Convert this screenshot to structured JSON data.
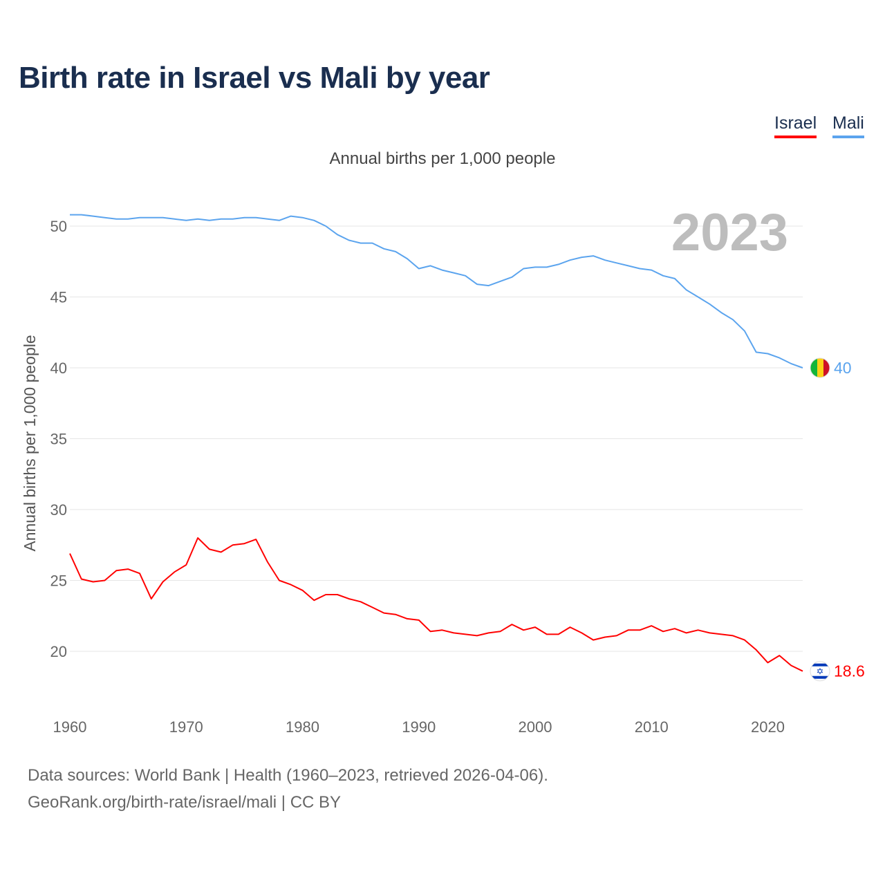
{
  "title": "Birth rate in Israel vs Mali by year",
  "legend": [
    {
      "label": "Israel",
      "color": "#ff0000"
    },
    {
      "label": "Mali",
      "color": "#5ba4ee"
    }
  ],
  "footer": {
    "line1": "Data sources: World Bank | Health (1960–2023, retrieved 2026-04-06).",
    "line2": "GeoRank.org/birth-rate/israel/mali | CC BY"
  },
  "chart_data": {
    "type": "line",
    "title": "Birth rate in Israel vs Mali by year",
    "subtitle": "Annual births per 1,000 people",
    "ylabel": "Annual births per 1,000 people",
    "xlabel": "",
    "year_label": "2023",
    "xlim": [
      1960,
      2023
    ],
    "ylim": [
      16,
      52
    ],
    "xticks": [
      1960,
      1970,
      1980,
      1990,
      2000,
      2010,
      2020
    ],
    "yticks": [
      20,
      25,
      30,
      35,
      40,
      45,
      50
    ],
    "grid": true,
    "legend_position": "top-right",
    "x": [
      1960,
      1961,
      1962,
      1963,
      1964,
      1965,
      1966,
      1967,
      1968,
      1969,
      1970,
      1971,
      1972,
      1973,
      1974,
      1975,
      1976,
      1977,
      1978,
      1979,
      1980,
      1981,
      1982,
      1983,
      1984,
      1985,
      1986,
      1987,
      1988,
      1989,
      1990,
      1991,
      1992,
      1993,
      1994,
      1995,
      1996,
      1997,
      1998,
      1999,
      2000,
      2001,
      2002,
      2003,
      2004,
      2005,
      2006,
      2007,
      2008,
      2009,
      2010,
      2011,
      2012,
      2013,
      2014,
      2015,
      2016,
      2017,
      2018,
      2019,
      2020,
      2021,
      2022,
      2023
    ],
    "series": [
      {
        "name": "Mali",
        "color": "#5ba4ee",
        "end_label": "40",
        "values": [
          50.8,
          50.8,
          50.7,
          50.6,
          50.5,
          50.5,
          50.6,
          50.6,
          50.6,
          50.5,
          50.4,
          50.5,
          50.4,
          50.5,
          50.5,
          50.6,
          50.6,
          50.5,
          50.4,
          50.7,
          50.6,
          50.4,
          50.0,
          49.4,
          49.0,
          48.8,
          48.8,
          48.4,
          48.2,
          47.7,
          47.0,
          47.2,
          46.9,
          46.7,
          46.5,
          45.9,
          45.8,
          46.1,
          46.4,
          47.0,
          47.1,
          47.1,
          47.3,
          47.6,
          47.8,
          47.9,
          47.6,
          47.4,
          47.2,
          47.0,
          46.9,
          46.5,
          46.3,
          45.5,
          45.0,
          44.5,
          43.9,
          43.4,
          42.6,
          41.1,
          41.0,
          40.7,
          40.3,
          40.0
        ]
      },
      {
        "name": "Israel",
        "color": "#ff0000",
        "end_label": "18.6",
        "values": [
          26.9,
          25.1,
          24.9,
          25.0,
          25.7,
          25.8,
          25.5,
          23.7,
          24.9,
          25.6,
          26.1,
          28.0,
          27.2,
          27.0,
          27.5,
          27.6,
          27.9,
          26.3,
          25.0,
          24.7,
          24.3,
          23.6,
          24.0,
          24.0,
          23.7,
          23.5,
          23.1,
          22.7,
          22.6,
          22.3,
          22.2,
          21.4,
          21.5,
          21.3,
          21.2,
          21.1,
          21.3,
          21.4,
          21.9,
          21.5,
          21.7,
          21.2,
          21.2,
          21.7,
          21.3,
          20.8,
          21.0,
          21.1,
          21.5,
          21.5,
          21.8,
          21.4,
          21.6,
          21.3,
          21.5,
          21.3,
          21.2,
          21.1,
          20.8,
          20.1,
          19.2,
          19.7,
          19.0,
          18.6
        ]
      }
    ]
  }
}
